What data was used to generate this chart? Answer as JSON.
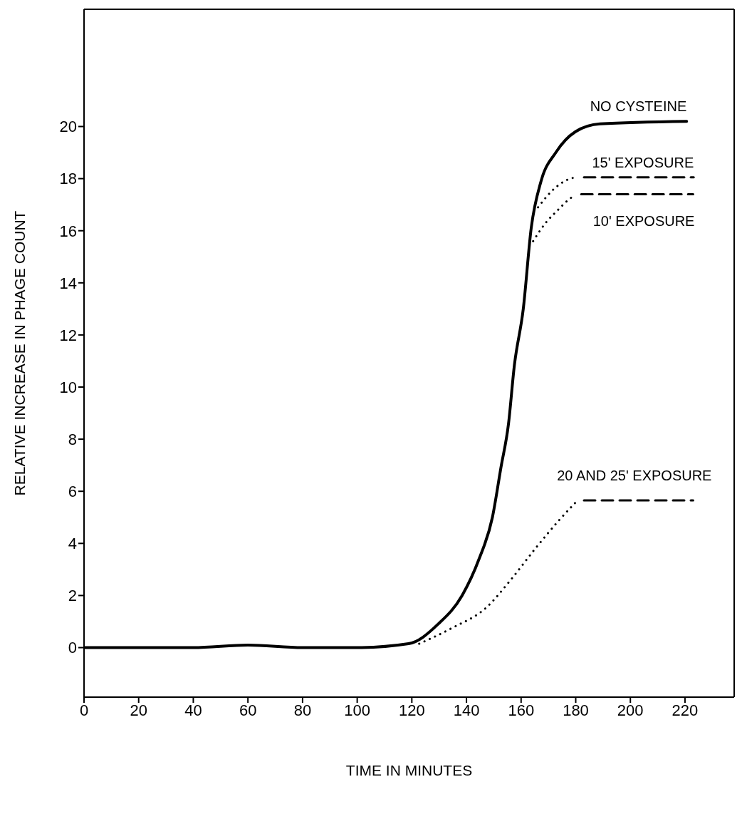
{
  "chart_data": {
    "type": "line",
    "xlabel": "TIME IN MINUTES",
    "ylabel": "RELATIVE INCREASE IN PHAGE COUNT",
    "xlim": [
      0,
      238
    ],
    "ylim": [
      -1.9,
      24.5
    ],
    "xticks": [
      0,
      20,
      40,
      60,
      80,
      100,
      120,
      140,
      160,
      180,
      200,
      220
    ],
    "yticks": [
      0,
      2,
      4,
      6,
      8,
      10,
      12,
      14,
      16,
      18,
      20
    ],
    "grid": false,
    "legend": false,
    "marker": "none",
    "series": [
      {
        "name": "NO CYSTEINE",
        "color": "#000000",
        "line_style": "solid",
        "x": [
          0,
          20,
          40,
          60,
          80,
          100,
          118.8,
          129.6,
          138.4,
          144.6,
          149.5,
          152.6,
          155.4,
          157.5,
          160.8,
          163.7,
          167.3,
          172.7,
          179.9,
          188.9,
          220.6
        ],
        "values": [
          0,
          0,
          0,
          0.1,
          0,
          0,
          0.15,
          0.9,
          2.0,
          3.4,
          5.0,
          6.9,
          8.6,
          10.8,
          13.0,
          16.1,
          17.9,
          19.0,
          19.8,
          20.1,
          20.2
        ]
      },
      {
        "color": "#000000",
        "line_style": "dotted",
        "x": [
          166.2,
          172,
          178,
          180.5
        ],
        "values": [
          16.9,
          17.6,
          18.0,
          18.05
        ]
      },
      {
        "name": "15' EXPOSURE",
        "color": "#000000",
        "line_style": "dashed",
        "x": [
          183,
          223.2
        ],
        "values": [
          18.05,
          18.05
        ]
      },
      {
        "color": "#000000",
        "line_style": "dotted",
        "x": [
          164.4,
          169,
          173.5,
          177.5,
          179.5
        ],
        "values": [
          15.6,
          16.3,
          16.8,
          17.2,
          17.35
        ]
      },
      {
        "name": "10' EXPOSURE",
        "color": "#000000",
        "line_style": "dashed",
        "x": [
          182,
          223
        ],
        "values": [
          17.4,
          17.4
        ]
      },
      {
        "color": "#000000",
        "line_style": "dotted",
        "x": [
          122.7,
          134.5,
          147.4,
          156.2,
          165.2,
          174,
          180.2
        ],
        "values": [
          0.15,
          0.74,
          1.55,
          2.6,
          3.8,
          4.9,
          5.6
        ]
      },
      {
        "name": "20 AND 25' EXPOSURE",
        "color": "#000000",
        "line_style": "dashed",
        "x": [
          183,
          223
        ],
        "values": [
          5.65,
          5.65
        ]
      }
    ]
  }
}
